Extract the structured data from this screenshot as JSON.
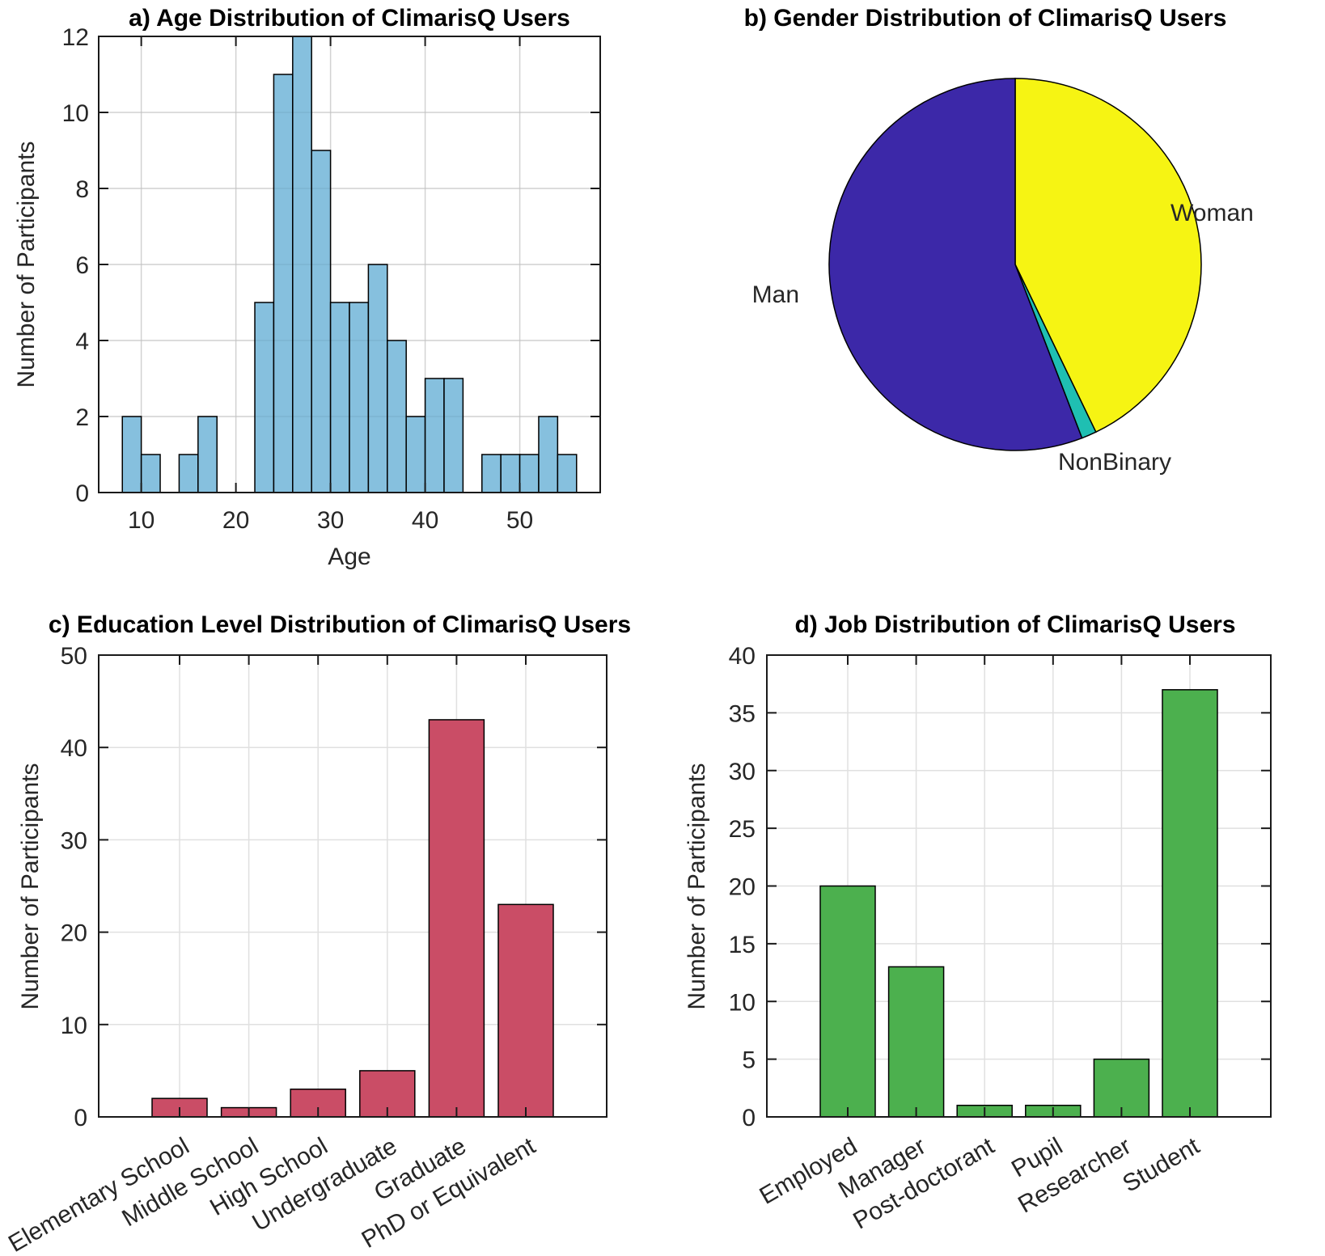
{
  "figure": {
    "background": "#FFFFFF",
    "axis_color": "#1A1A1A",
    "grid_color": "#E0E0E0",
    "text_color": "#262626"
  },
  "chart_data": [
    {
      "id": "age_histogram",
      "type": "histogram",
      "title": "a) Age Distribution of ClimarisQ Users",
      "xlabel": "Age",
      "ylabel": "Number of Participants",
      "bin_start": 8,
      "bin_width": 2,
      "counts": [
        2,
        1,
        0,
        1,
        2,
        0,
        0,
        5,
        11,
        12,
        9,
        5,
        5,
        6,
        4,
        2,
        3,
        3,
        0,
        1,
        1,
        1,
        2,
        1
      ],
      "xlim": [
        5.5,
        58.5
      ],
      "ylim": [
        0,
        12
      ],
      "xticks": [
        10,
        20,
        30,
        40,
        50
      ],
      "yticks": [
        0,
        2,
        4,
        6,
        8,
        10,
        12
      ],
      "bar_color": "#86C0DE",
      "bar_edge": "#000000",
      "grid": true
    },
    {
      "id": "gender_pie",
      "type": "pie",
      "title": "b) Gender Distribution of ClimarisQ Users",
      "total": 77,
      "start": "top",
      "direction": "clockwise",
      "slices": [
        {
          "label": "Woman",
          "value": 33,
          "color": "#F6F413"
        },
        {
          "label": "NonBinary",
          "value": 1,
          "color": "#1FBFB2"
        },
        {
          "label": "Man",
          "value": 43,
          "color": "#3C28A8"
        }
      ]
    },
    {
      "id": "education_bar",
      "type": "bar",
      "title": "c) Education Level Distribution of ClimarisQ Users",
      "ylabel": "Number of Participants",
      "categories": [
        "Elementary School",
        "Middle School",
        "High School",
        "Undergraduate",
        "Graduate",
        "PhD or Equivalent"
      ],
      "values": [
        2,
        1,
        3,
        5,
        43,
        23
      ],
      "ylim": [
        0,
        50
      ],
      "yticks": [
        0,
        10,
        20,
        30,
        40,
        50
      ],
      "bar_color": "#CA4D66",
      "bar_edge": "#000000",
      "label_rotation": -30,
      "grid": true
    },
    {
      "id": "job_bar",
      "type": "bar",
      "title": "d) Job Distribution of ClimarisQ Users",
      "ylabel": "Number of Participants",
      "categories": [
        "Employed",
        "Manager",
        "Post-doctorant",
        "Pupil",
        "Researcher",
        "Student"
      ],
      "values": [
        20,
        13,
        1,
        1,
        5,
        37
      ],
      "ylim": [
        0,
        40
      ],
      "yticks": [
        0,
        5,
        10,
        15,
        20,
        25,
        30,
        35,
        40
      ],
      "bar_color": "#4CB04E",
      "bar_edge": "#000000",
      "label_rotation": -30,
      "grid": true
    }
  ]
}
